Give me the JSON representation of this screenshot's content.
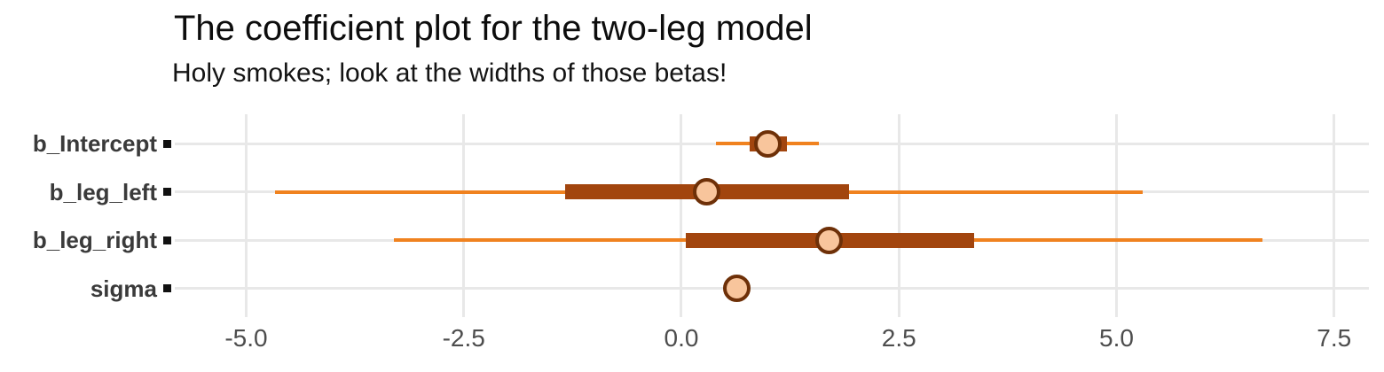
{
  "header": {
    "title": "The coefficient plot for the two-leg model",
    "subtitle": "Holy smokes; look at the widths of those betas!"
  },
  "chart_data": {
    "type": "pointinterval",
    "orientation": "horizontal",
    "title": "The coefficient plot for the two-leg model",
    "subtitle": "Holy smokes; look at the widths of those betas!",
    "xlabel": "",
    "ylabel": "",
    "x_ticks": [
      -5.0,
      -2.5,
      0.0,
      2.5,
      5.0,
      7.5
    ],
    "x_tick_labels": [
      "-5.0",
      "-2.5",
      "0.0",
      "2.5",
      "5.0",
      "7.5"
    ],
    "xlim": [
      -5.82,
      7.9
    ],
    "grid": true,
    "legend": false,
    "rows": [
      {
        "label": "b_Intercept",
        "point": 0.99,
        "inner": [
          0.79,
          1.21
        ],
        "outer": [
          0.4,
          1.58
        ]
      },
      {
        "label": "b_leg_left",
        "point": 0.29,
        "inner": [
          -1.34,
          1.93
        ],
        "outer": [
          -4.67,
          5.3
        ]
      },
      {
        "label": "b_leg_right",
        "point": 1.7,
        "inner": [
          0.05,
          3.36
        ],
        "outer": [
          -3.3,
          6.68
        ]
      },
      {
        "label": "sigma",
        "point": 0.64,
        "inner": [
          0.64,
          0.64
        ],
        "outer": [
          0.64,
          0.64
        ]
      }
    ],
    "colors": {
      "outer_line": "#f0821f",
      "inner_bar": "#a2450e",
      "point_fill": "#f8c59c",
      "point_stroke": "#6e3008",
      "grid": "#e8e8e8",
      "y_tick": "#111111",
      "axis_text": "#4d4d4d",
      "y_label_text": "#3a3a3a"
    }
  }
}
